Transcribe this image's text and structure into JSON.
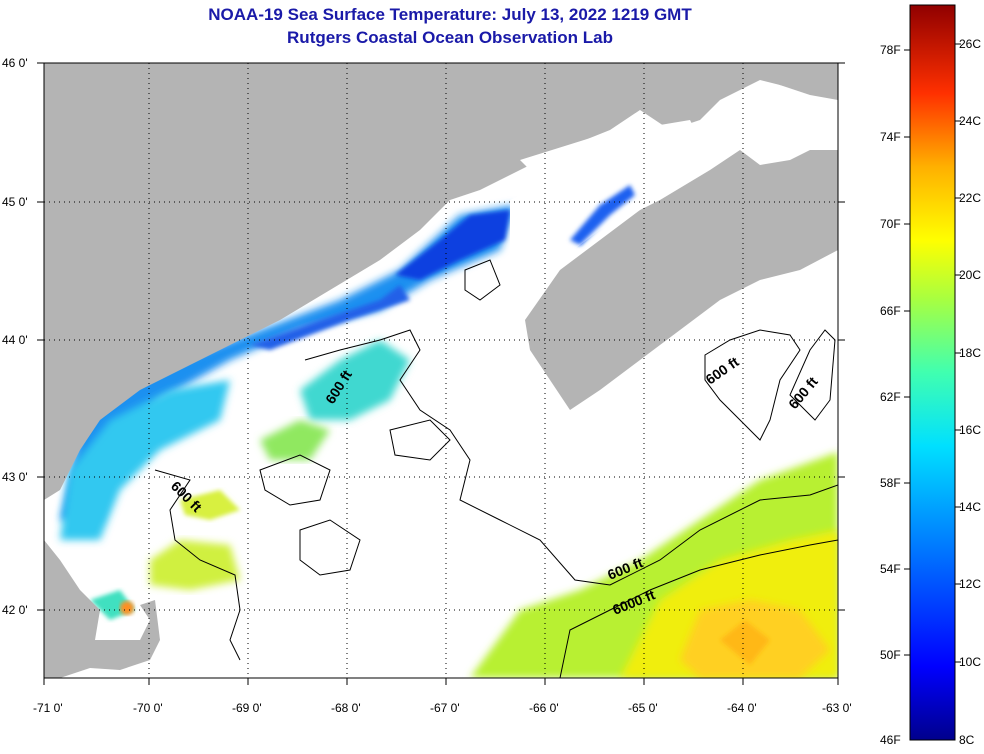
{
  "title_line1": "NOAA-19 Sea Surface Temperature:  July 13, 2022 1219 GMT",
  "title_line2": "Rutgers Coastal Ocean Observation Lab",
  "lat_labels": [
    "46 0'",
    "45 0'",
    "44 0'",
    "43 0'",
    "42 0'"
  ],
  "lon_labels": [
    "-71 0'",
    "-70 0'",
    "-69 0'",
    "-68 0'",
    "-67 0'",
    "-66 0'",
    "-65 0'",
    "-64 0'",
    "-63 0'"
  ],
  "contour_labels": [
    "600 ft",
    "600 ft",
    "600 ft",
    "600 ft",
    "600 ft",
    "6000 ft"
  ],
  "colorbar": {
    "fahrenheit": [
      "78F",
      "74F",
      "70F",
      "66F",
      "62F",
      "58F",
      "54F",
      "50F",
      "46F"
    ],
    "celsius": [
      "26C",
      "24C",
      "22C",
      "20C",
      "18C",
      "16C",
      "14C",
      "12C",
      "10C",
      "8C"
    ]
  },
  "colors": {
    "land": "#b4b4b4",
    "cloud": "#ffffff",
    "title": "#1a1aa8"
  }
}
